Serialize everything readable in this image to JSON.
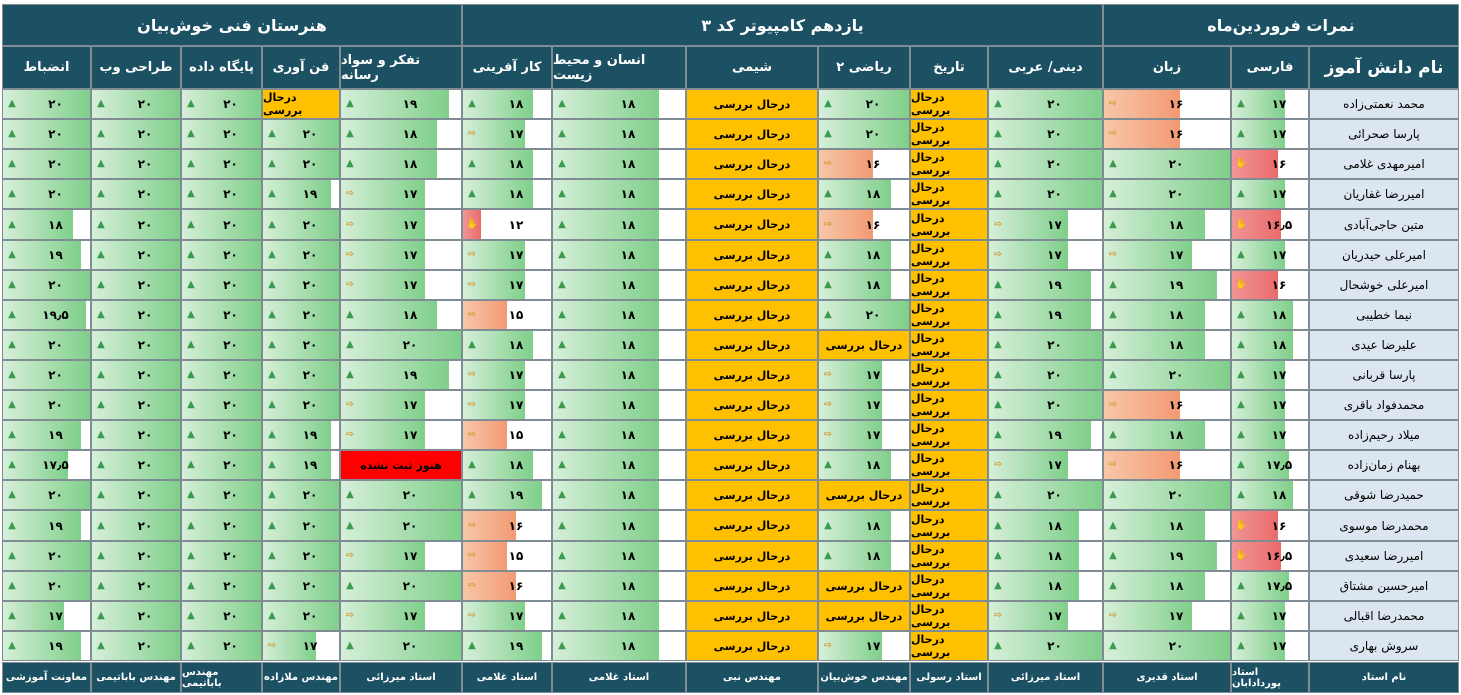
{
  "header": {
    "school": "هنرستان فنی خوش‌بیان",
    "class": "یازدهم کامپیوتر کد ۳",
    "title": "نمرات فروردین‌ماه"
  },
  "student_column_header": "نام دانش آموز",
  "teacher_row_label": "نام استاد",
  "subjects": [
    {
      "name": "فارسی",
      "teacher": "استاد پوردادابان"
    },
    {
      "name": "زبان",
      "teacher": "استاد قدیری"
    },
    {
      "name": "دینی/ عربی",
      "teacher": "استاد میرزائی"
    },
    {
      "name": "تاریخ",
      "teacher": "استاد رسولی"
    },
    {
      "name": "ریاضی ۲",
      "teacher": "مهندس خوش‌بیان"
    },
    {
      "name": "شیمی",
      "teacher": "مهندس نبی"
    },
    {
      "name": "انسان و محیط زیست",
      "teacher": "استاد غلامی"
    },
    {
      "name": "کار آفرینی",
      "teacher": "استاد غلامی"
    },
    {
      "name": "تفکر و سواد رسانه",
      "teacher": "استاد میرزائی"
    },
    {
      "name": "فن آوری",
      "teacher": "مهندس ملازاده"
    },
    {
      "name": "پایگاه داده",
      "teacher": "مهندس باباتیمی"
    },
    {
      "name": "طراحی وب",
      "teacher": "مهندس باباتیمی"
    },
    {
      "name": "انضباط",
      "teacher": "معاونت آموزشی"
    }
  ],
  "students": [
    {
      "name": "محمد نعمتی‌زاده",
      "grades": [
        "۱۷",
        "۱۶",
        "۲۰",
        "درحال بررسی",
        "۲۰",
        "درحال بررسی",
        "۱۸",
        "۱۸",
        "۱۹",
        "درحال بررسی",
        "۲۰",
        "۲۰",
        "۲۰"
      ]
    },
    {
      "name": "پارسا صحرائی",
      "grades": [
        "۱۷",
        "۱۶",
        "۲۰",
        "درحال بررسی",
        "۲۰",
        "درحال بررسی",
        "۱۸",
        "۱۷",
        "۱۸",
        "۲۰",
        "۲۰",
        "۲۰",
        "۲۰"
      ]
    },
    {
      "name": "امیرمهدی غلامی",
      "grades": [
        "۱۶",
        "۲۰",
        "۲۰",
        "درحال بررسی",
        "۱۶",
        "درحال بررسی",
        "۱۸",
        "۱۸",
        "۱۸",
        "۲۰",
        "۲۰",
        "۲۰",
        "۲۰"
      ]
    },
    {
      "name": "امیررضا غفاریان",
      "grades": [
        "۱۷",
        "۲۰",
        "۲۰",
        "درحال بررسی",
        "۱۸",
        "درحال بررسی",
        "۱۸",
        "۱۸",
        "۱۷",
        "۱۹",
        "۲۰",
        "۲۰",
        "۲۰"
      ]
    },
    {
      "name": "متین حاجی‌آبادی",
      "grades": [
        "۱۶٫۵",
        "۱۸",
        "۱۷",
        "درحال بررسی",
        "۱۶",
        "درحال بررسی",
        "۱۸",
        "۱۲",
        "۱۷",
        "۲۰",
        "۲۰",
        "۲۰",
        "۱۸"
      ]
    },
    {
      "name": "امیرعلی حیدریان",
      "grades": [
        "۱۷",
        "۱۷",
        "۱۷",
        "درحال بررسی",
        "۱۸",
        "درحال بررسی",
        "۱۸",
        "۱۷",
        "۱۷",
        "۲۰",
        "۲۰",
        "۲۰",
        "۱۹"
      ]
    },
    {
      "name": "امیرعلی خوشحال",
      "grades": [
        "۱۶",
        "۱۹",
        "۱۹",
        "درحال بررسی",
        "۱۸",
        "درحال بررسی",
        "۱۸",
        "۱۷",
        "۱۷",
        "۲۰",
        "۲۰",
        "۲۰",
        "۲۰"
      ]
    },
    {
      "name": "نیما خطیبی",
      "grades": [
        "۱۸",
        "۱۸",
        "۱۹",
        "درحال بررسی",
        "۲۰",
        "درحال بررسی",
        "۱۸",
        "۱۵",
        "۱۸",
        "۲۰",
        "۲۰",
        "۲۰",
        "۱۹٫۵"
      ]
    },
    {
      "name": "علیرضا عیدی",
      "grades": [
        "۱۸",
        "۱۸",
        "۲۰",
        "درحال بررسی",
        "درحال بررسی",
        "درحال بررسی",
        "۱۸",
        "۱۸",
        "۲۰",
        "۲۰",
        "۲۰",
        "۲۰",
        "۲۰"
      ]
    },
    {
      "name": "پارسا قربانی",
      "grades": [
        "۱۷",
        "۲۰",
        "۲۰",
        "درحال بررسی",
        "۱۷",
        "درحال بررسی",
        "۱۸",
        "۱۷",
        "۱۹",
        "۲۰",
        "۲۰",
        "۲۰",
        "۲۰"
      ]
    },
    {
      "name": "محمدفواد باقری",
      "grades": [
        "۱۷",
        "۱۶",
        "۲۰",
        "درحال بررسی",
        "۱۷",
        "درحال بررسی",
        "۱۸",
        "۱۷",
        "۱۷",
        "۲۰",
        "۲۰",
        "۲۰",
        "۲۰"
      ]
    },
    {
      "name": "میلاد رحیم‌زاده",
      "grades": [
        "۱۷",
        "۱۸",
        "۱۹",
        "درحال بررسی",
        "۱۷",
        "درحال بررسی",
        "۱۸",
        "۱۵",
        "۱۷",
        "۱۹",
        "۲۰",
        "۲۰",
        "۱۹"
      ]
    },
    {
      "name": "بهنام زمان‌زاده",
      "grades": [
        "۱۷٫۵",
        "۱۶",
        "۱۷",
        "درحال بررسی",
        "۱۸",
        "درحال بررسی",
        "۱۸",
        "۱۸",
        "هنوز ثبت نشده",
        "۱۹",
        "۲۰",
        "۲۰",
        "۱۷٫۵"
      ]
    },
    {
      "name": "حمیدرضا شوقی",
      "grades": [
        "۱۸",
        "۲۰",
        "۲۰",
        "درحال بررسی",
        "درحال بررسی",
        "درحال بررسی",
        "۱۸",
        "۱۹",
        "۲۰",
        "۲۰",
        "۲۰",
        "۲۰",
        "۲۰"
      ]
    },
    {
      "name": "محمدرضا موسوی",
      "grades": [
        "۱۶",
        "۱۸",
        "۱۸",
        "درحال بررسی",
        "۱۸",
        "درحال بررسی",
        "۱۸",
        "۱۶",
        "۲۰",
        "۲۰",
        "۲۰",
        "۲۰",
        "۱۹"
      ]
    },
    {
      "name": "امیررضا سعیدی",
      "grades": [
        "۱۶٫۵",
        "۱۹",
        "۱۸",
        "درحال بررسی",
        "۱۸",
        "درحال بررسی",
        "۱۸",
        "۱۵",
        "۱۷",
        "۲۰",
        "۲۰",
        "۲۰",
        "۲۰"
      ]
    },
    {
      "name": "امیرحسین مشتاق",
      "grades": [
        "۱۷٫۵",
        "۱۸",
        "۱۸",
        "درحال بررسی",
        "درحال بررسی",
        "درحال بررسی",
        "۱۸",
        "۱۶",
        "۲۰",
        "۲۰",
        "۲۰",
        "۲۰",
        "۲۰"
      ]
    },
    {
      "name": "محمدرضا اقبالی",
      "grades": [
        "۱۷",
        "۱۷",
        "۱۷",
        "درحال بررسی",
        "درحال بررسی",
        "درحال بررسی",
        "۱۸",
        "۱۷",
        "۱۷",
        "۲۰",
        "۲۰",
        "۲۰",
        "۱۷"
      ]
    },
    {
      "name": "سروش بهاری",
      "grades": [
        "۱۷",
        "۲۰",
        "۲۰",
        "درحال بررسی",
        "۱۷",
        "درحال بررسی",
        "۱۸",
        "۱۹",
        "۲۰",
        "۱۷",
        "۲۰",
        "۲۰",
        "۱۹"
      ]
    }
  ],
  "colors": {
    "header_bg": "#1c5063",
    "name_bg": "#dce6f1",
    "pending_bg": "#ffc000",
    "missing_bg": "#ff0000",
    "bar_green": "#7fcf8a",
    "bar_orange": "#f29a72",
    "bar_red": "#ea6b6b"
  }
}
